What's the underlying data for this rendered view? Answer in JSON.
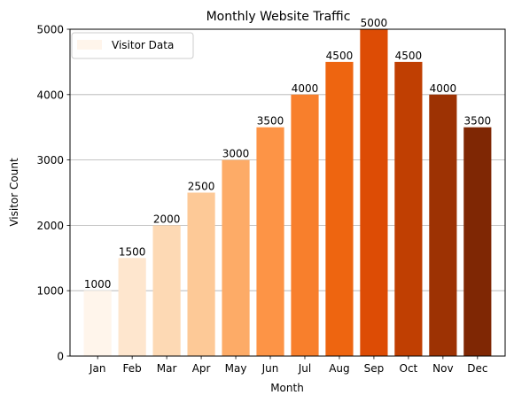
{
  "chart_data": {
    "type": "bar",
    "title": "Monthly Website Traffic",
    "xlabel": "Month",
    "ylabel": "Visitor Count",
    "categories": [
      "Jan",
      "Feb",
      "Mar",
      "Apr",
      "May",
      "Jun",
      "Jul",
      "Aug",
      "Sep",
      "Oct",
      "Nov",
      "Dec"
    ],
    "series": [
      {
        "name": "Visitor Data",
        "values": [
          1000,
          1500,
          2000,
          2500,
          3000,
          3500,
          4000,
          4500,
          5000,
          4500,
          4000,
          3500
        ]
      }
    ],
    "data_labels": [
      "1000",
      "1500",
      "2000",
      "2500",
      "3000",
      "3500",
      "4000",
      "4500",
      "5000",
      "4500",
      "4000",
      "3500"
    ],
    "bar_colors": [
      "#fff5eb",
      "#fee6ce",
      "#fdd9b4",
      "#fdc997",
      "#fdab67",
      "#fd9446",
      "#f87f2c",
      "#ee6510",
      "#dd4c05",
      "#c03f02",
      "#9d3203",
      "#7f2704"
    ],
    "ylim": [
      0,
      5000
    ],
    "yticks": [
      0,
      1000,
      2000,
      3000,
      4000,
      5000
    ],
    "ytick_labels": [
      "0",
      "1000",
      "2000",
      "3000",
      "4000",
      "5000"
    ],
    "grid": "horizontal",
    "legend_position": "upper-left"
  }
}
